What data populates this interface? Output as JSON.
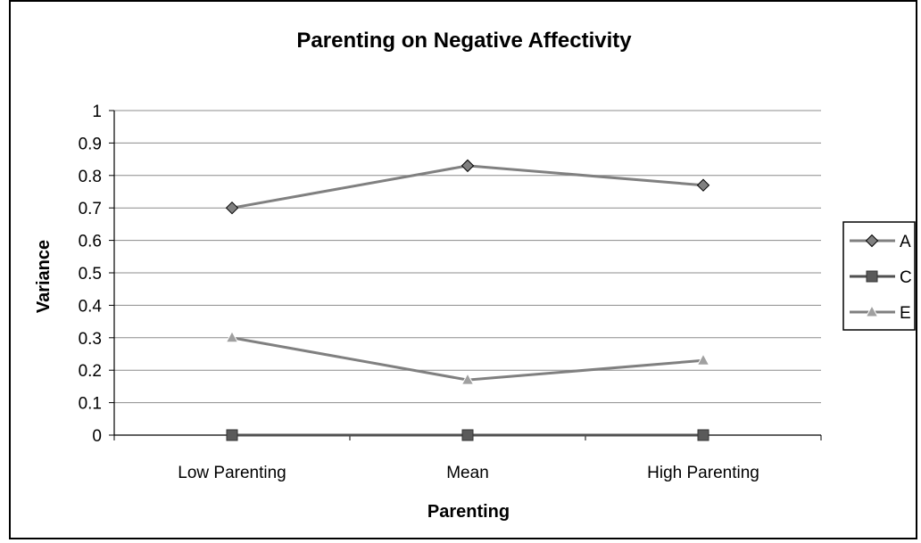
{
  "chart_data": {
    "type": "line",
    "title": "Parenting on Negative Affectivity",
    "xlabel": "Parenting",
    "ylabel": "Variance",
    "categories": [
      "Low Parenting",
      "Mean",
      "High Parenting"
    ],
    "ylim": [
      0,
      1
    ],
    "yticks": [
      0,
      0.1,
      0.2,
      0.3,
      0.4,
      0.5,
      0.6,
      0.7,
      0.8,
      0.9,
      1
    ],
    "yticklabels": [
      "0",
      "0.1",
      "0.2",
      "0.3",
      "0.4",
      "0.5",
      "0.6",
      "0.7",
      "0.8",
      "0.9",
      "1"
    ],
    "grid": "horizontal",
    "legend_position": "right",
    "series": [
      {
        "name": "A",
        "values": [
          0.7,
          0.83,
          0.77
        ],
        "marker": "diamond",
        "color": "#808080",
        "marker_fill": "#808080"
      },
      {
        "name": "C",
        "values": [
          0.0,
          0.0,
          0.0
        ],
        "marker": "square",
        "color": "#505050",
        "marker_fill": "#5a5a5a"
      },
      {
        "name": "E",
        "values": [
          0.3,
          0.17,
          0.23
        ],
        "marker": "triangle",
        "color": "#808080",
        "marker_fill": "#a0a0a0"
      }
    ]
  }
}
